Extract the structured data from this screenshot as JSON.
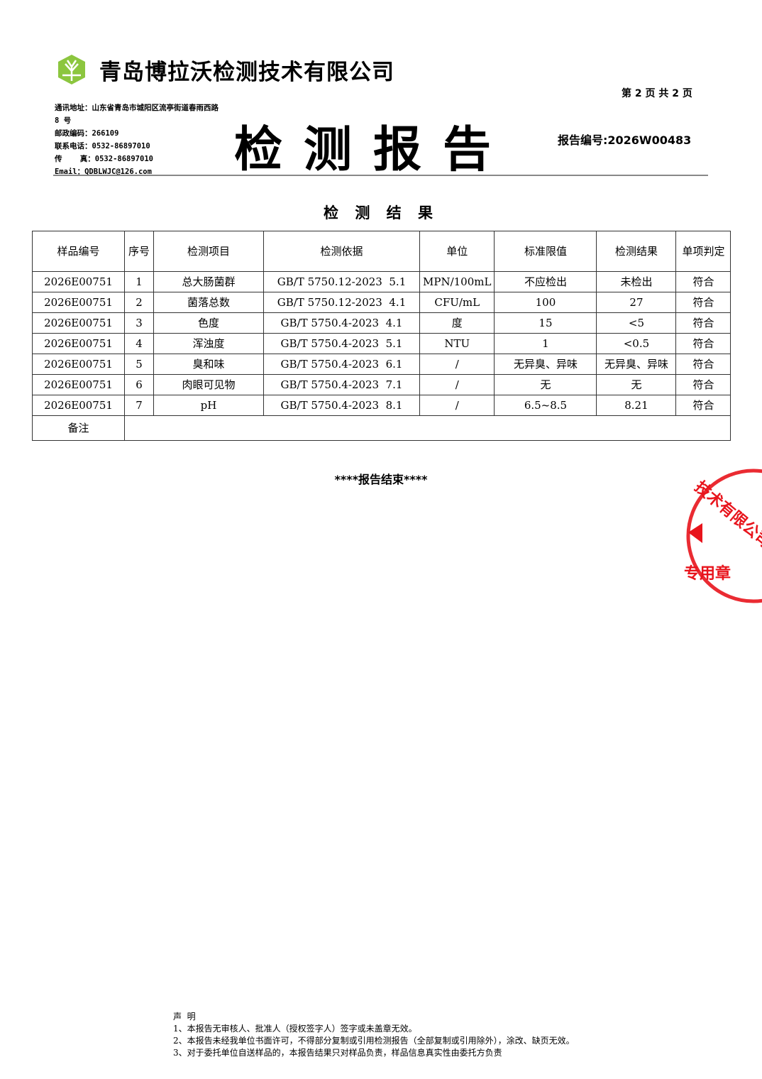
{
  "header": {
    "company": "青岛博拉沃检测技术有限公司",
    "page_info": "第 2 页 共 2 页",
    "contact": [
      "通讯地址：山东省青岛市城阳区流亭街道春雨西路",
      "8 号",
      "邮政编码：266109",
      "联系电话：0532-86897010",
      "传    真：0532-86897010",
      "Email：QDBLWJC@126.com"
    ],
    "title": "检测报告",
    "report_no": "报告编号:2026W00483"
  },
  "section_title": "检 测 结 果",
  "table": {
    "headers": [
      "样品编号",
      "序号",
      "检测项目",
      "检测依据",
      "单位",
      "标准限值",
      "检测结果",
      "单项判定"
    ],
    "rows": [
      [
        "2026E00751",
        "1",
        "总大肠菌群",
        "GB/T 5750.12-2023  5.1",
        "MPN/100mL",
        "不应检出",
        "未检出",
        "符合"
      ],
      [
        "2026E00751",
        "2",
        "菌落总数",
        "GB/T 5750.12-2023  4.1",
        "CFU/mL",
        "100",
        "27",
        "符合"
      ],
      [
        "2026E00751",
        "3",
        "色度",
        "GB/T 5750.4-2023  4.1",
        "度",
        "15",
        "<5",
        "符合"
      ],
      [
        "2026E00751",
        "4",
        "浑浊度",
        "GB/T 5750.4-2023  5.1",
        "NTU",
        "1",
        "<0.5",
        "符合"
      ],
      [
        "2026E00751",
        "5",
        "臭和味",
        "GB/T 5750.4-2023  6.1",
        "/",
        "无异臭、异味",
        "无异臭、异味",
        "符合"
      ],
      [
        "2026E00751",
        "6",
        "肉眼可见物",
        "GB/T 5750.4-2023  7.1",
        "/",
        "无",
        "无",
        "符合"
      ],
      [
        "2026E00751",
        "7",
        "pH",
        "GB/T 5750.4-2023  8.1",
        "/",
        "6.5~8.5",
        "8.21",
        "符合"
      ]
    ],
    "remarks_label": "备注",
    "remarks_value": ""
  },
  "end_text": "****报告结束****",
  "stamp_text": "技术有限公司 专用章",
  "notes": {
    "title": "声  明",
    "items": [
      "1、本报告无审核人、批准人（授权签字人）签字或未盖章无效。",
      "2、本报告未经我单位书面许可，不得部分复制或引用检测报告（全部复制或引用除外），涂改、缺页无效。",
      "3、对于委托单位自送样品的，本报告结果只对样品负责，样品信息真实性由委托方负责"
    ]
  },
  "colors": {
    "logo": "#8cc63f",
    "stamp": "#e8141c"
  }
}
